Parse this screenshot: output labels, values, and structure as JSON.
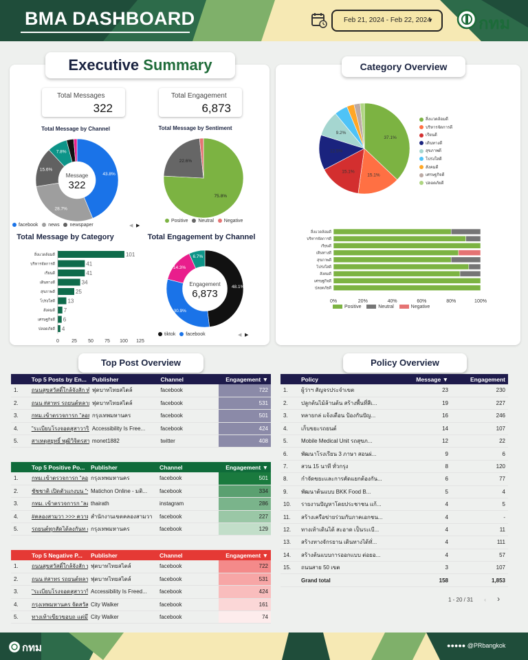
{
  "header": {
    "title": "BMA DASHBOARD",
    "date_range": "Feb 21, 2024 - Feb 22, 2024",
    "logo_text": "กทม",
    "icons": [
      "calendar-icon",
      "bma-seal-icon"
    ]
  },
  "executive": {
    "title_a": "Executive",
    "title_b": "Summary",
    "total_messages_label": "Total Messages",
    "total_messages": "322",
    "total_engagement_label": "Total Engagement",
    "total_engagement": "6,873"
  },
  "chart_data": [
    {
      "type": "pie",
      "name": "channel_donut",
      "title": "Total Message by Channel",
      "center_label": "Message",
      "center_value": "322",
      "slices": [
        {
          "label": "facebook",
          "value": 43.8,
          "color": "#1a73e8"
        },
        {
          "label": "news",
          "value": 28.7,
          "color": "#9e9e9e"
        },
        {
          "label": "newspaper",
          "value": 15.6,
          "color": "#616161"
        },
        {
          "label": "",
          "value": 7.8,
          "color": "#0d9488"
        },
        {
          "label": "",
          "value": 2.8,
          "color": "#111111"
        },
        {
          "label": "",
          "value": 1.3,
          "color": "#e91e8c"
        }
      ],
      "legend": [
        "facebook",
        "news",
        "newspaper"
      ]
    },
    {
      "type": "pie",
      "name": "sentiment_pie",
      "title": "Total Message by Sentiment",
      "slices": [
        {
          "label": "Positive",
          "value": 75.8,
          "color": "#7cb342"
        },
        {
          "label": "Neutral",
          "value": 22.6,
          "color": "#666666"
        },
        {
          "label": "Negative",
          "value": 1.6,
          "color": "#e57373"
        }
      ]
    },
    {
      "type": "bar",
      "name": "category_bars",
      "title": "Total Message by Category",
      "categories": [
        "สิ่งแวดล้อมดี",
        "บริหารจัดการดี",
        "เรียนดี",
        "เดินทางดี",
        "สุขภาพดี",
        "โปร่งใสดี",
        "สังคมดี",
        "เศรษฐกิจดี",
        "ปลอดภัยดี"
      ],
      "values": [
        101,
        41,
        41,
        34,
        25,
        13,
        7,
        6,
        4
      ],
      "xticks": [
        "0",
        "25",
        "50",
        "75",
        "100",
        "125"
      ],
      "xlim": [
        0,
        125
      ],
      "color": "#0f6b4b"
    },
    {
      "type": "pie",
      "name": "engagement_donut",
      "title": "Total Engagement by Channel",
      "center_label": "Engagement",
      "center_value": "6,873",
      "slices": [
        {
          "label": "tiktok",
          "value": 48.1,
          "color": "#111111"
        },
        {
          "label": "facebook",
          "value": 30.9,
          "color": "#1a73e8"
        },
        {
          "label": "",
          "value": 14.3,
          "color": "#e91e8c"
        },
        {
          "label": "",
          "value": 6.7,
          "color": "#0d9488"
        }
      ],
      "legend": [
        "tiktok",
        "facebook"
      ]
    },
    {
      "type": "pie",
      "name": "category_pie",
      "title": "Category Overview",
      "slices": [
        {
          "label": "สิ่งแวดล้อมดี",
          "value": 37.1,
          "color": "#7cb342"
        },
        {
          "label": "บริหารจัดการดี",
          "value": 15.1,
          "color": "#ff7043"
        },
        {
          "label": "เรียนดี",
          "value": 15.1,
          "color": "#d32f2f"
        },
        {
          "label": "เดินทางดี",
          "value": 12.5,
          "color": "#1a237e"
        },
        {
          "label": "สุขภาพดี",
          "value": 9.2,
          "color": "#a5d6d0"
        },
        {
          "label": "โปร่งใสดี",
          "value": 4.7,
          "color": "#4fc3f7"
        },
        {
          "label": "สังคมดี",
          "value": 2.6,
          "color": "#ffa726"
        },
        {
          "label": "เศรษฐกิจดี",
          "value": 2.2,
          "color": "#bcaaa4"
        },
        {
          "label": "ปลอดภัยดี",
          "value": 1.5,
          "color": "#aed581"
        }
      ]
    },
    {
      "type": "bar",
      "name": "category_stacked",
      "stacked": true,
      "percent": true,
      "categories": [
        "สิ่งแวดล้อมดี",
        "บริหารจัดการดี",
        "เรียนดี",
        "เดินทางดี",
        "สุขภาพดี",
        "โปร่งใสดี",
        "สังคมดี",
        "เศรษฐกิจดี",
        "ปลอดภัยดี"
      ],
      "series": [
        {
          "name": "Positive",
          "color": "#7cb342",
          "values": [
            80,
            90,
            100,
            85,
            80,
            92,
            86,
            100,
            100
          ]
        },
        {
          "name": "Neutral",
          "color": "#757575",
          "values": [
            20,
            10,
            0,
            0,
            20,
            8,
            14,
            0,
            0
          ]
        },
        {
          "name": "Negative",
          "color": "#e57373",
          "values": [
            0,
            0,
            0,
            15,
            0,
            0,
            0,
            0,
            0
          ]
        }
      ],
      "xticks": [
        "0%",
        "20%",
        "40%",
        "60%",
        "80%",
        "100%"
      ]
    }
  ],
  "sentiment_legend": [
    "Positive",
    "Neutral",
    "Negative"
  ],
  "category_title": "Category Overview",
  "top_post_title": "Top Post Overview",
  "policy_title": "Policy Overview",
  "top5_all": {
    "headers": [
      "Top 5 Posts by En...",
      "Publisher",
      "Channel",
      "Engagement"
    ],
    "rows": [
      [
        "1.",
        "ถนนสุขสวัสดิ์ใกล้จังสัก ทำฟุ...",
        "ฟุตบาทไทยสไตล์",
        "facebook",
        "722"
      ],
      [
        "2.",
        "ถนน #สาทร รถยนต์หลายค...",
        "ฟุตบาทไทยสไตล์",
        "facebook",
        "531"
      ],
      [
        "3.",
        "กทม.เข้าตรวจการก \"ลอย...",
        "กรุงเทพมหานคร",
        "facebook",
        "501"
      ],
      [
        "4.",
        "\"ระเบียบโรงจอดสุสาวาริย...",
        "Accessibility Is Free...",
        "facebook",
        "424"
      ],
      [
        "5.",
        "สาเหตุสยุทธิ์ พุฒิวิจิตรสาม...",
        "monet1882",
        "twitter",
        "408"
      ]
    ]
  },
  "top5_pos": {
    "headers": [
      "Top 5 Positive Po...",
      "Publisher",
      "Channel",
      "Engagement"
    ],
    "rows": [
      [
        "1.",
        "กทม.เข้าตรวจการก \"ลอย...",
        "กรุงเทพมหานคร",
        "facebook",
        "501"
      ],
      [
        "2.",
        "ชัชชาติ เปิดตัวแกงบน \"รอ...",
        "Matichon Online - มติ...",
        "facebook",
        "334"
      ],
      [
        "3.",
        "กทม. เข้าตรวจการก \"ลอ...",
        "thairath",
        "instagram",
        "286"
      ],
      [
        "4.",
        "#คลองสามวา >>> ความคื...",
        "สำนักงานเขตคลองสามวา",
        "facebook",
        "227"
      ],
      [
        "5.",
        "รถยนต์ทุกสัดได้ลงกันท ณ...",
        "กรุงเทพมหานคร",
        "facebook",
        "129"
      ]
    ]
  },
  "top5_neg": {
    "headers": [
      "Top 5 Negative P...",
      "Publisher",
      "Channel",
      "Engagement"
    ],
    "rows": [
      [
        "1.",
        "ถนนสุขสวัสดิ์ใกล้จังสัก ทำฟุ...",
        "ฟุตบาทไทยสไตล์",
        "facebook",
        "722"
      ],
      [
        "2.",
        "ถนน #สาทร รถยนต์หลาย...",
        "ฟุตบาทไทยสไตล์",
        "facebook",
        "531"
      ],
      [
        "3.",
        "\"ระเบียบโรงจอดสุสาวาริย...",
        "Accessibility Is Freed...",
        "facebook",
        "424"
      ],
      [
        "4.",
        "กรุงเทพมหานคร จัดสวัสดิ์...",
        "City Walker",
        "facebook",
        "161"
      ],
      [
        "5.",
        "ทางเท้าเขียวขอบถ แต่มีไร...",
        "City Walker",
        "facebook",
        "74"
      ]
    ]
  },
  "policy": {
    "headers": [
      "Policy",
      "Message",
      "Engagement"
    ],
    "rows": [
      [
        "1.",
        "ผู้ว่าฯ สัญจรประจำเขต",
        "23",
        "230"
      ],
      [
        "2.",
        "ปลูกต้นไม้ล้านต้น สร้างพื้นที่สีเ...",
        "19",
        "227"
      ],
      [
        "3.",
        "ทลายกล่ แจ้งเตือน ป้องกันปัญ...",
        "16",
        "246"
      ],
      [
        "4.",
        "เก็บขยะรถยนต์",
        "14",
        "107"
      ],
      [
        "5.",
        "Mobile Medical Unit รถสุขภ...",
        "12",
        "22"
      ],
      [
        "6.",
        "พัฒนาโรงเรียน 3 ภาษา สอนผ่...",
        "9",
        "6"
      ],
      [
        "7.",
        "สวน 15 นาที ทั่วกรุง",
        "8",
        "120"
      ],
      [
        "8.",
        "กำจัดขยะและการคัดแยกต้องกัน...",
        "6",
        "77"
      ],
      [
        "9.",
        "พัฒนาต้นแบบ BKK Food B...",
        "5",
        "4"
      ],
      [
        "10.",
        "รายงานปัญหาโดยประชาชน แก้...",
        "4",
        "5"
      ],
      [
        "11.",
        "สร้างเครือข่ายร่วมกับภาคเอกชน...",
        "4",
        "-"
      ],
      [
        "12.",
        "ทางเท้าเดินได้ สะอาด เป็นระเบี...",
        "4",
        "11"
      ],
      [
        "13.",
        "สร้างทางจักรยาน เดินทางได้ทั่...",
        "4",
        "111"
      ],
      [
        "14.",
        "สร้างต้นแบบการออกแบบ ต่อยอ...",
        "4",
        "57"
      ],
      [
        "15.",
        "ถนนสาย 50 เขต",
        "3",
        "107"
      ]
    ],
    "grand_total_label": "Grand total",
    "grand_total_message": "158",
    "grand_total_engagement": "1,853",
    "pagination": "1 - 20 / 31"
  },
  "footer": {
    "logo_text": "กทม",
    "handle": "@PRbangkok"
  }
}
